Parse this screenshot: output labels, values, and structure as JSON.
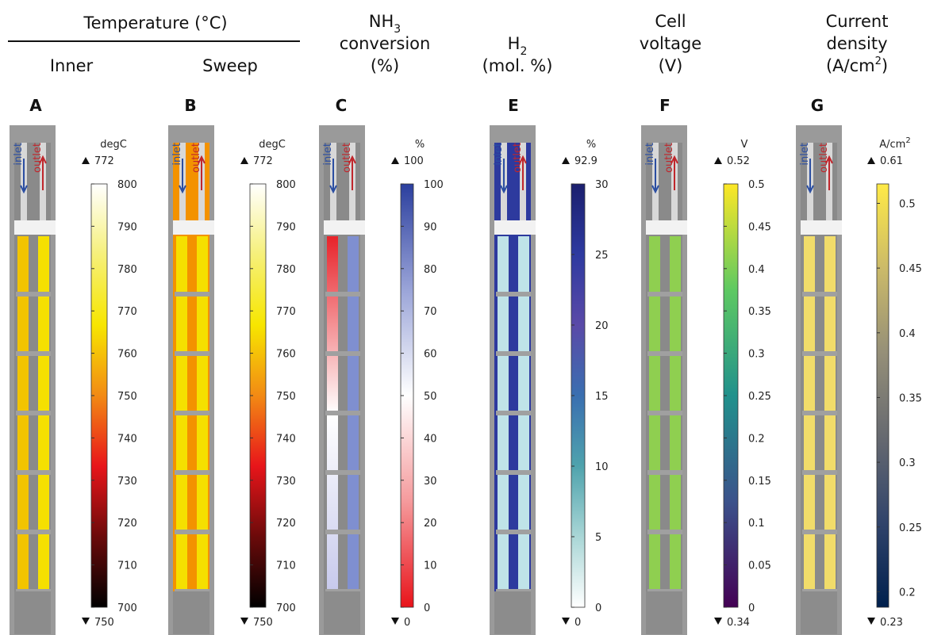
{
  "header": {
    "title": "Temperature (°C)",
    "columns": [
      "Inner",
      "Sweep"
    ]
  },
  "panels": [
    {
      "letter": "A",
      "title": [],
      "unit": {
        "text": "degC"
      },
      "max": 772,
      "min": 750,
      "range": [
        700,
        800
      ],
      "ticks": [
        700,
        710,
        720,
        730,
        740,
        750,
        760,
        770,
        780,
        790,
        800
      ],
      "colors": [
        "#000000",
        "#6b0a0a",
        "#e8151a",
        "#f28a14",
        "#f7e600",
        "#f6f07a",
        "#ffffff"
      ],
      "inlet": "inlet",
      "outlet": "outlet"
    },
    {
      "letter": "B",
      "title": [],
      "unit": {
        "text": "degC"
      },
      "max": 772,
      "min": 750,
      "range": [
        700,
        800
      ],
      "ticks": [
        700,
        710,
        720,
        730,
        740,
        750,
        760,
        770,
        780,
        790,
        800
      ],
      "colors": [
        "#000000",
        "#6b0a0a",
        "#e8151a",
        "#f28a14",
        "#f7e600",
        "#f6f07a",
        "#ffffff"
      ],
      "inlet": "inlet",
      "outlet": "outlet"
    },
    {
      "letter": "C",
      "title": [
        {
          "text": "NH",
          "sub": "3"
        },
        {
          "text": "conversion"
        },
        {
          "text": "(%)"
        }
      ],
      "unit": {
        "text": "%"
      },
      "max": 100,
      "min": 0,
      "range": [
        0,
        100
      ],
      "ticks": [
        0,
        10,
        20,
        30,
        40,
        50,
        60,
        70,
        80,
        90,
        100
      ],
      "colors": [
        "#e8131a",
        "#f59a9c",
        "#ffffff",
        "#9aa4d8",
        "#2b3f9e"
      ],
      "inlet": "inlet",
      "outlet": "outlet"
    },
    {
      "letter": "E",
      "title": [
        {
          "text": "H",
          "sub": "2"
        },
        {
          "text": "(mol. %)"
        }
      ],
      "unit": {
        "text": "%"
      },
      "max": 92.9,
      "min": 0,
      "range": [
        0,
        30
      ],
      "ticks": [
        0,
        5,
        10,
        15,
        20,
        25,
        30
      ],
      "colors": [
        "#ffffff",
        "#a9d6d6",
        "#4fa3ad",
        "#3a6fb0",
        "#5a4aa8",
        "#2e3aa0",
        "#1b1f6e"
      ],
      "inlet": "inlet",
      "outlet": "outlet"
    },
    {
      "letter": "F",
      "title": [
        {
          "text": "Cell"
        },
        {
          "text": "voltage"
        },
        {
          "text": "(V)"
        }
      ],
      "unit": {
        "text": "V"
      },
      "max": 0.52,
      "min": 0.34,
      "range": [
        0,
        0.5
      ],
      "ticks": [
        0,
        0.05,
        0.1,
        0.15,
        0.2,
        0.25,
        0.3,
        0.35,
        0.4,
        0.45,
        0.5
      ],
      "colors": [
        "#440154",
        "#3b528b",
        "#21918c",
        "#5ec962",
        "#fde725"
      ],
      "inlet": "inlet",
      "outlet": "outlet"
    },
    {
      "letter": "G",
      "title": [
        {
          "text": "Current"
        },
        {
          "text": "density"
        },
        {
          "text": "(A/cm",
          "sup": "2",
          "after": ")"
        }
      ],
      "unit": {
        "text": "A/cm",
        "sup": "2"
      },
      "max": 0.61,
      "min": 0.23,
      "range": [
        0.188,
        0.515
      ],
      "ticks": [
        0.2,
        0.25,
        0.3,
        0.35,
        0.4,
        0.45,
        0.5
      ],
      "colors": [
        "#00204d",
        "#31446b",
        "#666970",
        "#958f78",
        "#cbba69",
        "#ffea46"
      ],
      "inlet": "inlet",
      "outlet": "outlet"
    }
  ]
}
